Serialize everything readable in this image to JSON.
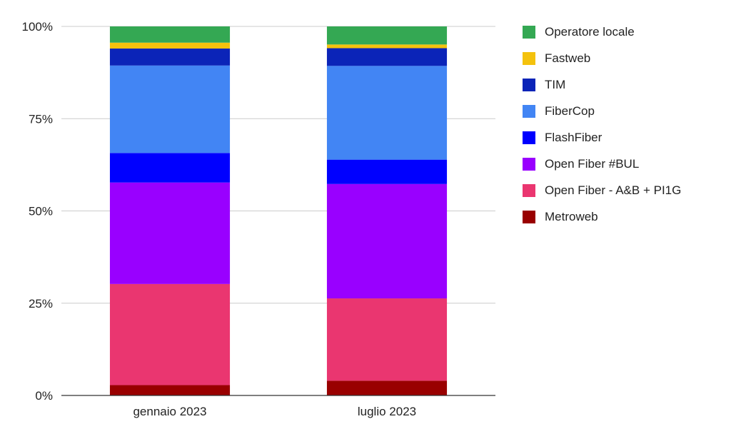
{
  "chart_data": {
    "type": "bar",
    "stacked": true,
    "normalized": true,
    "categories": [
      "gennaio 2023",
      "luglio 2023"
    ],
    "yticks": [
      "0%",
      "25%",
      "50%",
      "75%",
      "100%"
    ],
    "ylim": [
      0,
      100
    ],
    "grid": true,
    "legend_position": "right",
    "series": [
      {
        "name": "Metroweb",
        "color": "#990000",
        "values": [
          2.8,
          4.0
        ]
      },
      {
        "name": "Open Fiber - A&B + PI1G",
        "color": "#EA3670",
        "values": [
          27.4,
          22.3
        ]
      },
      {
        "name": "Open Fiber #BUL",
        "color": "#9900FF",
        "values": [
          27.5,
          31.0
        ]
      },
      {
        "name": "FlashFiber",
        "color": "#0000FF",
        "values": [
          8.0,
          6.6
        ]
      },
      {
        "name": "FiberCop",
        "color": "#4285F4",
        "values": [
          23.7,
          25.4
        ]
      },
      {
        "name": "TIM",
        "color": "#0B24B8",
        "values": [
          4.6,
          4.8
        ]
      },
      {
        "name": "Fastweb",
        "color": "#F4C20D",
        "values": [
          1.6,
          1.0
        ]
      },
      {
        "name": "Operatore locale",
        "color": "#34A853",
        "values": [
          4.4,
          4.9
        ]
      }
    ]
  }
}
